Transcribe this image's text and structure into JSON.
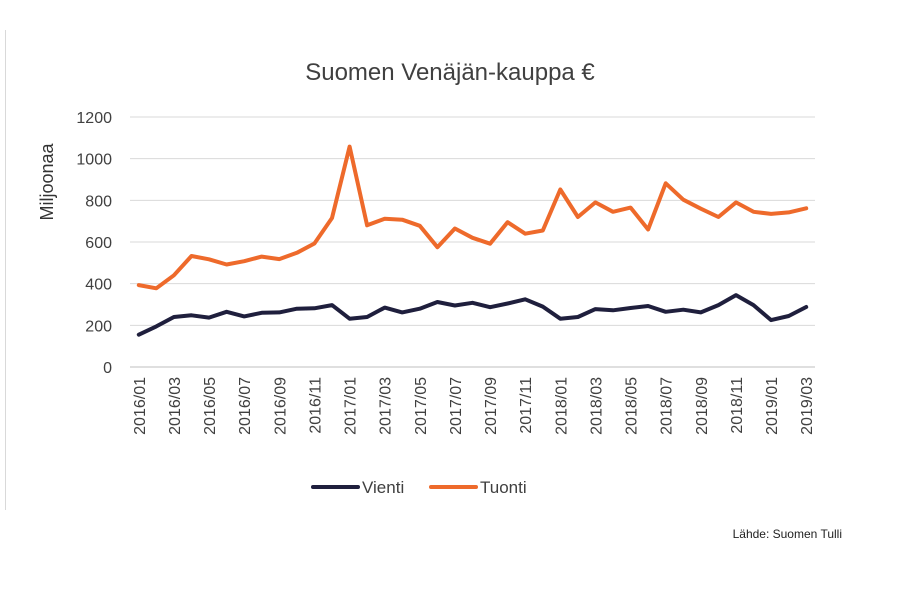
{
  "chart_data": {
    "type": "line",
    "title": "Suomen Venäjän-kauppa €",
    "ylabel": "Miljoonaa",
    "xlabel": "",
    "ylim": [
      0,
      1200
    ],
    "yticks": [
      0,
      200,
      400,
      600,
      800,
      1000,
      1200
    ],
    "grid": true,
    "legend": "bottom",
    "x": [
      "2016/01",
      "2016/02",
      "2016/03",
      "2016/04",
      "2016/05",
      "2016/06",
      "2016/07",
      "2016/08",
      "2016/09",
      "2016/10",
      "2016/11",
      "2016/12",
      "2017/01",
      "2017/02",
      "2017/03",
      "2017/04",
      "2017/05",
      "2017/06",
      "2017/07",
      "2017/08",
      "2017/09",
      "2017/10",
      "2017/11",
      "2017/12",
      "2018/01",
      "2018/02",
      "2018/03",
      "2018/04",
      "2018/05",
      "2018/06",
      "2018/07",
      "2018/08",
      "2018/09",
      "2018/10",
      "2018/11",
      "2018/12",
      "2019/01",
      "2019/02",
      "2019/03"
    ],
    "tick_labels": [
      "2016/01",
      "2016/03",
      "2016/05",
      "2016/07",
      "2016/09",
      "2016/11",
      "2017/01",
      "2017/03",
      "2017/05",
      "2017/07",
      "2017/09",
      "2017/11",
      "2018/01",
      "2018/03",
      "2018/05",
      "2018/07",
      "2018/09",
      "2018/11",
      "2019/01",
      "2019/03"
    ],
    "series": [
      {
        "name": "Vienti",
        "color": "#1f1f3d",
        "values": [
          155,
          195,
          240,
          248,
          237,
          265,
          243,
          260,
          262,
          280,
          282,
          297,
          232,
          240,
          285,
          262,
          280,
          312,
          295,
          308,
          287,
          305,
          325,
          290,
          232,
          240,
          278,
          272,
          283,
          293,
          265,
          275,
          262,
          297,
          345,
          297,
          225,
          245,
          288
        ]
      },
      {
        "name": "Tuonti",
        "color": "#ee6a2b",
        "values": [
          393,
          378,
          440,
          533,
          517,
          492,
          508,
          530,
          518,
          548,
          593,
          715,
          1058,
          680,
          712,
          707,
          678,
          575,
          665,
          620,
          592,
          695,
          640,
          655,
          852,
          720,
          790,
          745,
          765,
          660,
          882,
          803,
          760,
          720,
          790,
          745,
          735,
          742,
          762
        ]
      }
    ]
  },
  "source": "Lähde: Suomen Tulli"
}
